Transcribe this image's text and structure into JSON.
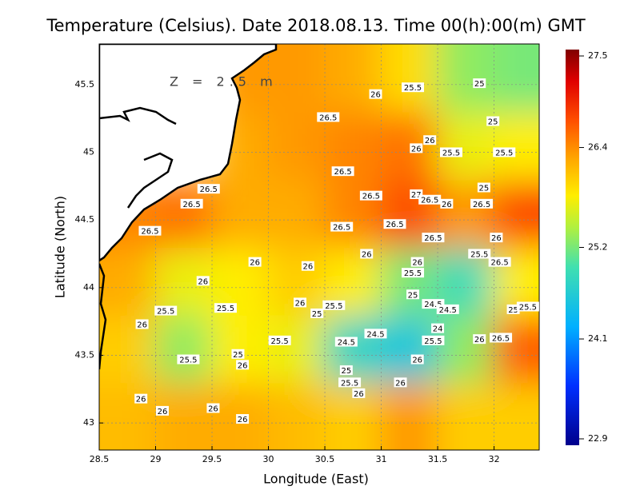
{
  "chart_data": {
    "type": "contour_map",
    "title": "Temperature (Celsius). Date 2018.08.13. Time 00(h):00(m)  GMT",
    "x_label": "Longitude (East)",
    "y_label": "Latitude (North)",
    "annotation": "Z = 2.5 m",
    "xlim": [
      28.5,
      32.4
    ],
    "ylim": [
      42.8,
      45.8
    ],
    "xticks": [
      28.5,
      29,
      29.5,
      30,
      30.5,
      31,
      31.5,
      32
    ],
    "yticks": [
      43,
      43.5,
      44,
      44.5,
      45,
      45.5
    ],
    "grid": true,
    "colorbar": {
      "lim": [
        22.9,
        27.5
      ],
      "ticks": [
        22.9,
        24.1,
        25.2,
        26.4,
        27.5
      ]
    },
    "field": {
      "lon_edges": [
        28.5,
        29,
        29.5,
        30,
        30.5,
        31,
        31.5,
        32,
        32.5
      ],
      "lat_edges": [
        42.8,
        43.3,
        43.8,
        44.3,
        44.8,
        45.3,
        45.8
      ],
      "values": [
        [
          26.1,
          26.2,
          26.2,
          26.1,
          26.0,
          26.3,
          26.0,
          26.0
        ],
        [
          26.0,
          25.3,
          25.8,
          25.7,
          24.8,
          24.6,
          25.3,
          26.6
        ],
        [
          26.2,
          25.7,
          25.8,
          26.0,
          25.8,
          25.2,
          24.9,
          25.8
        ],
        [
          26.4,
          26.5,
          26.2,
          26.2,
          26.4,
          26.7,
          26.3,
          26.7
        ],
        [
          null,
          null,
          26.2,
          26.3,
          26.4,
          26.5,
          25.7,
          25.8
        ],
        [
          null,
          null,
          26.3,
          26.3,
          26.2,
          25.9,
          25.3,
          25.2
        ]
      ]
    },
    "contour_labels": [
      {
        "lon": 31.28,
        "lat": 45.48,
        "value": 25.5
      },
      {
        "lon": 31.87,
        "lat": 45.51,
        "value": 25
      },
      {
        "lon": 30.95,
        "lat": 45.43,
        "value": 26
      },
      {
        "lon": 30.53,
        "lat": 45.26,
        "value": 26.5
      },
      {
        "lon": 31.99,
        "lat": 45.23,
        "value": 25
      },
      {
        "lon": 31.31,
        "lat": 45.03,
        "value": 26
      },
      {
        "lon": 31.43,
        "lat": 45.09,
        "value": 26
      },
      {
        "lon": 31.62,
        "lat": 45.0,
        "value": 25.5
      },
      {
        "lon": 32.09,
        "lat": 45.0,
        "value": 25.5
      },
      {
        "lon": 30.66,
        "lat": 44.86,
        "value": 26.5
      },
      {
        "lon": 29.47,
        "lat": 44.73,
        "value": 26.5
      },
      {
        "lon": 29.32,
        "lat": 44.62,
        "value": 26.5
      },
      {
        "lon": 30.91,
        "lat": 44.68,
        "value": 26.5
      },
      {
        "lon": 31.31,
        "lat": 44.69,
        "value": 27
      },
      {
        "lon": 31.43,
        "lat": 44.65,
        "value": 26.5
      },
      {
        "lon": 31.58,
        "lat": 44.62,
        "value": 26
      },
      {
        "lon": 31.91,
        "lat": 44.74,
        "value": 25
      },
      {
        "lon": 31.89,
        "lat": 44.62,
        "value": 26.5
      },
      {
        "lon": 28.95,
        "lat": 44.42,
        "value": 26.5
      },
      {
        "lon": 30.65,
        "lat": 44.45,
        "value": 26.5
      },
      {
        "lon": 31.12,
        "lat": 44.47,
        "value": 26.5
      },
      {
        "lon": 31.46,
        "lat": 44.37,
        "value": 26.5
      },
      {
        "lon": 32.02,
        "lat": 44.37,
        "value": 26
      },
      {
        "lon": 31.87,
        "lat": 44.25,
        "value": 25.5
      },
      {
        "lon": 32.05,
        "lat": 44.19,
        "value": 26.5
      },
      {
        "lon": 30.87,
        "lat": 44.25,
        "value": 26
      },
      {
        "lon": 31.32,
        "lat": 44.19,
        "value": 26
      },
      {
        "lon": 29.88,
        "lat": 44.19,
        "value": 26
      },
      {
        "lon": 30.35,
        "lat": 44.16,
        "value": 26
      },
      {
        "lon": 31.28,
        "lat": 44.11,
        "value": 25.5
      },
      {
        "lon": 29.42,
        "lat": 44.05,
        "value": 26
      },
      {
        "lon": 31.28,
        "lat": 43.95,
        "value": 25
      },
      {
        "lon": 30.28,
        "lat": 43.89,
        "value": 26
      },
      {
        "lon": 30.58,
        "lat": 43.87,
        "value": 25.5
      },
      {
        "lon": 30.43,
        "lat": 43.81,
        "value": 25
      },
      {
        "lon": 29.09,
        "lat": 43.83,
        "value": 25.5
      },
      {
        "lon": 29.62,
        "lat": 43.85,
        "value": 25.5
      },
      {
        "lon": 31.46,
        "lat": 43.88,
        "value": 24.5
      },
      {
        "lon": 31.59,
        "lat": 43.84,
        "value": 24.5
      },
      {
        "lon": 32.17,
        "lat": 43.84,
        "value": 25
      },
      {
        "lon": 32.3,
        "lat": 43.86,
        "value": 25.5
      },
      {
        "lon": 28.88,
        "lat": 43.73,
        "value": 26
      },
      {
        "lon": 31.5,
        "lat": 43.7,
        "value": 24
      },
      {
        "lon": 30.95,
        "lat": 43.66,
        "value": 24.5
      },
      {
        "lon": 31.46,
        "lat": 43.61,
        "value": 25.5
      },
      {
        "lon": 31.87,
        "lat": 43.62,
        "value": 26
      },
      {
        "lon": 32.06,
        "lat": 43.63,
        "value": 26.5
      },
      {
        "lon": 30.1,
        "lat": 43.61,
        "value": 25.5
      },
      {
        "lon": 30.69,
        "lat": 43.6,
        "value": 24.5
      },
      {
        "lon": 29.29,
        "lat": 43.47,
        "value": 25.5
      },
      {
        "lon": 29.73,
        "lat": 43.51,
        "value": 25
      },
      {
        "lon": 29.77,
        "lat": 43.43,
        "value": 26
      },
      {
        "lon": 31.32,
        "lat": 43.47,
        "value": 26
      },
      {
        "lon": 30.69,
        "lat": 43.39,
        "value": 25
      },
      {
        "lon": 30.72,
        "lat": 43.3,
        "value": 25.5
      },
      {
        "lon": 31.17,
        "lat": 43.3,
        "value": 26
      },
      {
        "lon": 30.8,
        "lat": 43.22,
        "value": 26
      },
      {
        "lon": 28.87,
        "lat": 43.18,
        "value": 26
      },
      {
        "lon": 29.06,
        "lat": 43.09,
        "value": 26
      },
      {
        "lon": 29.51,
        "lat": 43.11,
        "value": 26
      },
      {
        "lon": 29.77,
        "lat": 43.03,
        "value": 26
      }
    ]
  }
}
